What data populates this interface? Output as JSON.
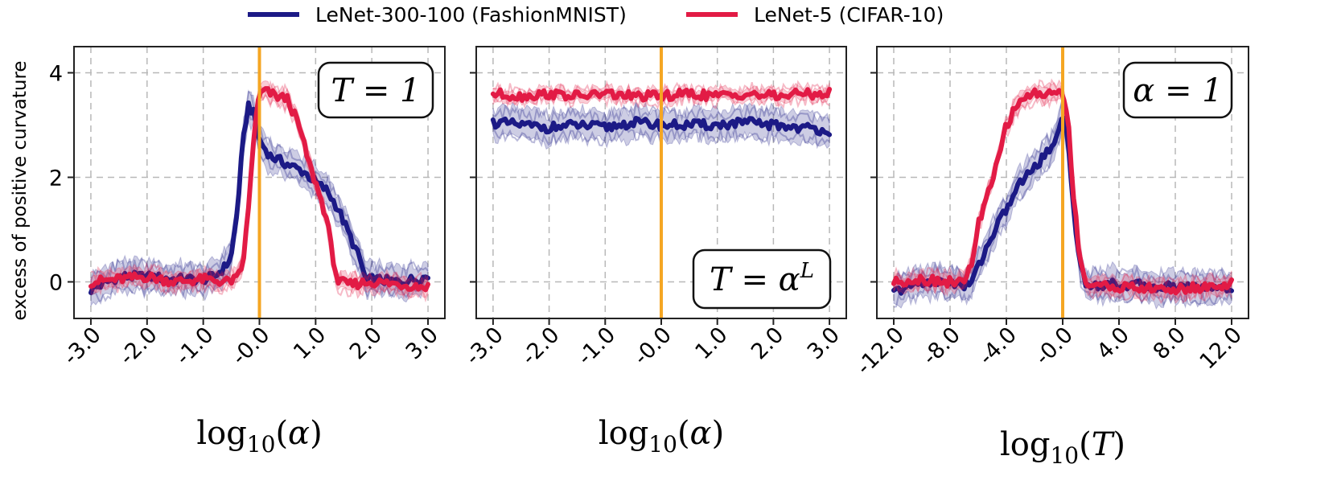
{
  "legend": [
    {
      "label": "LeNet-300-100 (FashionMNIST)",
      "color": "#1c1a86"
    },
    {
      "label": "LeNet-5 (CIFAR-10)",
      "color": "#e21b45"
    }
  ],
  "ylabel": "excess of positive curvature",
  "vline_color": "#f5a623",
  "chart_data": [
    {
      "type": "line",
      "title": "",
      "annotation": "T = 1",
      "annotation_pos": "top-right",
      "xlabel": "log10(α)",
      "ylabel": "excess of positive curvature",
      "xlim": [
        -3.3,
        3.3
      ],
      "ylim": [
        -0.7,
        4.5
      ],
      "xticks": [
        -3,
        -2,
        -1,
        0,
        1,
        2,
        3
      ],
      "xtick_labels": [
        "-3.0",
        "-2.0",
        "-1.0",
        "-0.0",
        "1.0",
        "2.0",
        "3.0"
      ],
      "yticks": [
        0,
        2,
        4
      ],
      "ytick_labels": [
        "0",
        "2",
        "4"
      ],
      "vline": 0,
      "series": [
        {
          "name": "LeNet-300-100 (FashionMNIST)",
          "x": [
            -3.0,
            -2.5,
            -2.0,
            -1.5,
            -1.0,
            -0.8,
            -0.6,
            -0.5,
            -0.4,
            -0.3,
            -0.2,
            -0.1,
            0.0,
            0.2,
            0.4,
            0.6,
            0.8,
            1.0,
            1.2,
            1.4,
            1.6,
            1.8,
            1.9,
            2.0,
            2.5,
            3.0
          ],
          "y": [
            -0.15,
            0.1,
            0.1,
            0.05,
            0.05,
            0.1,
            0.3,
            0.5,
            1.3,
            2.6,
            3.4,
            3.2,
            2.7,
            2.4,
            2.3,
            2.2,
            2.1,
            1.9,
            1.75,
            1.4,
            0.9,
            0.4,
            0.0,
            0.05,
            0.0,
            0.1
          ],
          "band": 0.35
        },
        {
          "name": "LeNet-5 (CIFAR-10)",
          "x": [
            -3.0,
            -2.5,
            -2.0,
            -1.5,
            -1.0,
            -0.6,
            -0.4,
            -0.3,
            -0.2,
            -0.1,
            0.0,
            0.1,
            0.3,
            0.5,
            0.7,
            0.9,
            1.0,
            1.2,
            1.3,
            1.4,
            1.6,
            2.0,
            2.5,
            3.0
          ],
          "y": [
            0.0,
            0.05,
            0.1,
            0.0,
            0.05,
            0.0,
            0.05,
            0.3,
            1.3,
            2.8,
            3.6,
            3.65,
            3.55,
            3.5,
            3.0,
            2.2,
            1.9,
            1.2,
            0.5,
            0.0,
            -0.05,
            0.0,
            -0.05,
            -0.1
          ],
          "band": 0.2
        }
      ]
    },
    {
      "type": "line",
      "title": "",
      "annotation": "T = α^L",
      "annotation_pos": "bottom-right",
      "xlabel": "log10(α)",
      "ylabel": "",
      "xlim": [
        -3.3,
        3.3
      ],
      "ylim": [
        -0.7,
        4.5
      ],
      "xticks": [
        -3,
        -2,
        -1,
        0,
        1,
        2,
        3
      ],
      "xtick_labels": [
        "-3.0",
        "-2.0",
        "-1.0",
        "-0.0",
        "1.0",
        "2.0",
        "3.0"
      ],
      "yticks": [
        0,
        2,
        4
      ],
      "ytick_labels": [
        "",
        "",
        ""
      ],
      "vline": 0,
      "series": [
        {
          "name": "LeNet-300-100 (FashionMNIST)",
          "x": [
            -3.0,
            -2.5,
            -2.0,
            -1.5,
            -1.0,
            -0.5,
            0.0,
            0.5,
            1.0,
            1.5,
            2.0,
            2.5,
            3.0
          ],
          "y": [
            3.05,
            3.0,
            2.95,
            3.0,
            2.95,
            3.05,
            3.0,
            3.0,
            3.0,
            3.05,
            3.0,
            2.95,
            2.9
          ],
          "band": 0.35
        },
        {
          "name": "LeNet-5 (CIFAR-10)",
          "x": [
            -3.0,
            -2.5,
            -2.0,
            -1.5,
            -1.0,
            -0.5,
            0.0,
            0.5,
            1.0,
            1.5,
            2.0,
            2.5,
            3.0
          ],
          "y": [
            3.6,
            3.55,
            3.6,
            3.55,
            3.6,
            3.55,
            3.55,
            3.6,
            3.55,
            3.6,
            3.55,
            3.6,
            3.6
          ],
          "band": 0.15
        }
      ]
    },
    {
      "type": "line",
      "title": "",
      "annotation": "α = 1",
      "annotation_pos": "top-right",
      "xlabel": "log10(T)",
      "ylabel": "",
      "xlim": [
        -13.2,
        13.2
      ],
      "ylim": [
        -0.7,
        4.5
      ],
      "xticks": [
        -12,
        -8,
        -4,
        0,
        4,
        8,
        12
      ],
      "xtick_labels": [
        "-12.0",
        "-8.0",
        "-4.0",
        "-0.0",
        "4.0",
        "8.0",
        "12.0"
      ],
      "yticks": [
        0,
        2,
        4
      ],
      "ytick_labels": [
        "",
        "",
        ""
      ],
      "vline": 0,
      "series": [
        {
          "name": "LeNet-300-100 (FashionMNIST)",
          "x": [
            -12.0,
            -10.0,
            -8.0,
            -7.0,
            -6.5,
            -6.0,
            -5.0,
            -4.0,
            -3.0,
            -2.0,
            -1.0,
            -0.4,
            0.0,
            0.4,
            0.8,
            1.2,
            1.6,
            2.0,
            4.0,
            8.0,
            12.0
          ],
          "y": [
            -0.2,
            0.0,
            0.0,
            -0.1,
            0.0,
            0.3,
            0.9,
            1.4,
            1.9,
            2.2,
            2.5,
            2.8,
            3.3,
            2.6,
            1.4,
            0.3,
            0.0,
            -0.05,
            -0.05,
            -0.1,
            -0.1
          ],
          "band": 0.35
        },
        {
          "name": "LeNet-5 (CIFAR-10)",
          "x": [
            -12.0,
            -10.0,
            -8.0,
            -7.0,
            -6.5,
            -6.0,
            -5.0,
            -4.0,
            -3.0,
            -2.0,
            -1.0,
            0.0,
            0.4,
            0.8,
            1.2,
            1.6,
            2.0,
            4.0,
            8.0,
            12.0
          ],
          "y": [
            0.0,
            0.05,
            0.0,
            0.0,
            0.3,
            1.1,
            1.9,
            3.0,
            3.5,
            3.6,
            3.6,
            3.65,
            3.0,
            1.6,
            0.5,
            0.0,
            -0.05,
            -0.1,
            -0.15,
            -0.05
          ],
          "band": 0.2
        }
      ]
    }
  ]
}
